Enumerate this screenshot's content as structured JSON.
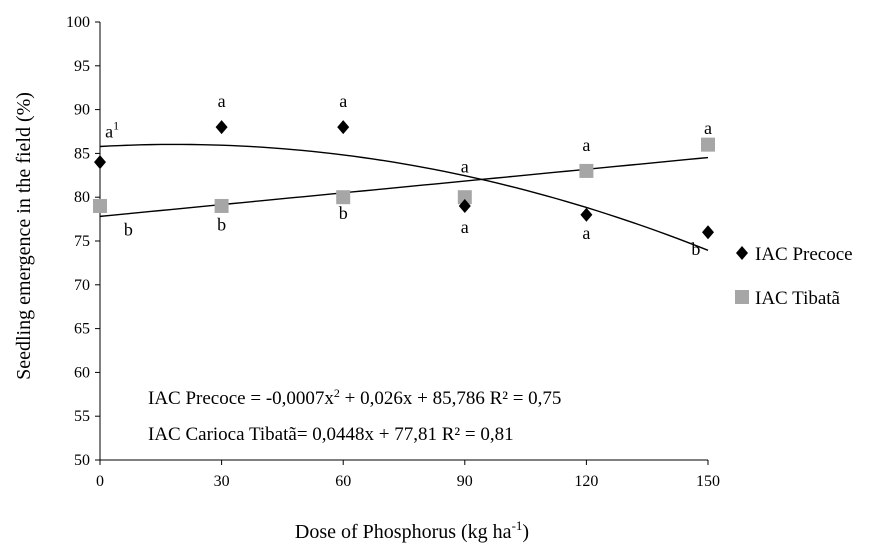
{
  "chart_data": {
    "type": "scatter",
    "xlabel": "Dose of Phosphorus (kg ha",
    "xlabel_sup": "-1",
    "xlabel_suffix": ")",
    "ylabel": "Seedling emergence in the field (%)",
    "x": [
      0,
      30,
      60,
      90,
      120,
      150
    ],
    "x_ticks": [
      "0",
      "30",
      "60",
      "90",
      "120",
      "150"
    ],
    "y_ticks": [
      "50",
      "55",
      "60",
      "65",
      "70",
      "75",
      "80",
      "85",
      "90",
      "95",
      "100"
    ],
    "xlim": [
      0,
      150
    ],
    "ylim": [
      50,
      100
    ],
    "grid": false,
    "legend_position": "right",
    "series": [
      {
        "name": "IAC Precoce",
        "marker": "diamond",
        "color": "#000000",
        "values": [
          84,
          88,
          88,
          79,
          78,
          76
        ],
        "fit": {
          "type": "quadratic",
          "a": -0.0007,
          "b": 0.026,
          "c": 85.786
        }
      },
      {
        "name": "IAC Tibatã",
        "marker": "square",
        "color": "#a6a6a6",
        "values": [
          79,
          79,
          80,
          80,
          83,
          86
        ],
        "fit": {
          "type": "linear",
          "slope": 0.0448,
          "intercept": 77.81
        }
      }
    ],
    "equations": [
      {
        "pre": "IAC Precoce = -0,0007x",
        "sup": "2",
        "post": " + 0,026x + 85,786 R² = 0,75"
      },
      {
        "pre": "IAC Carioca Tibatã= 0,0448x + 77,81 R² = 0,81",
        "sup": "",
        "post": ""
      }
    ],
    "significance_labels": [
      {
        "text": "a",
        "sup": "1",
        "x": 3,
        "y": 86.8
      },
      {
        "text": "a",
        "sup": "",
        "x": 30,
        "y": 90.3
      },
      {
        "text": "a",
        "sup": "",
        "x": 60,
        "y": 90.3
      },
      {
        "text": "a",
        "sup": "",
        "x": 90,
        "y": 82.8
      },
      {
        "text": "a",
        "sup": "",
        "x": 120,
        "y": 85.3
      },
      {
        "text": "a",
        "sup": "",
        "x": 150,
        "y": 87.2
      },
      {
        "text": "b",
        "sup": "",
        "x": 7,
        "y": 75.6
      },
      {
        "text": "b",
        "sup": "",
        "x": 30,
        "y": 76.2
      },
      {
        "text": "b",
        "sup": "",
        "x": 60,
        "y": 77.5
      },
      {
        "text": "a",
        "sup": "",
        "x": 90,
        "y": 75.9
      },
      {
        "text": "a",
        "sup": "",
        "x": 120,
        "y": 75.2
      },
      {
        "text": "b",
        "sup": "",
        "x": 147,
        "y": 73.4
      }
    ]
  }
}
